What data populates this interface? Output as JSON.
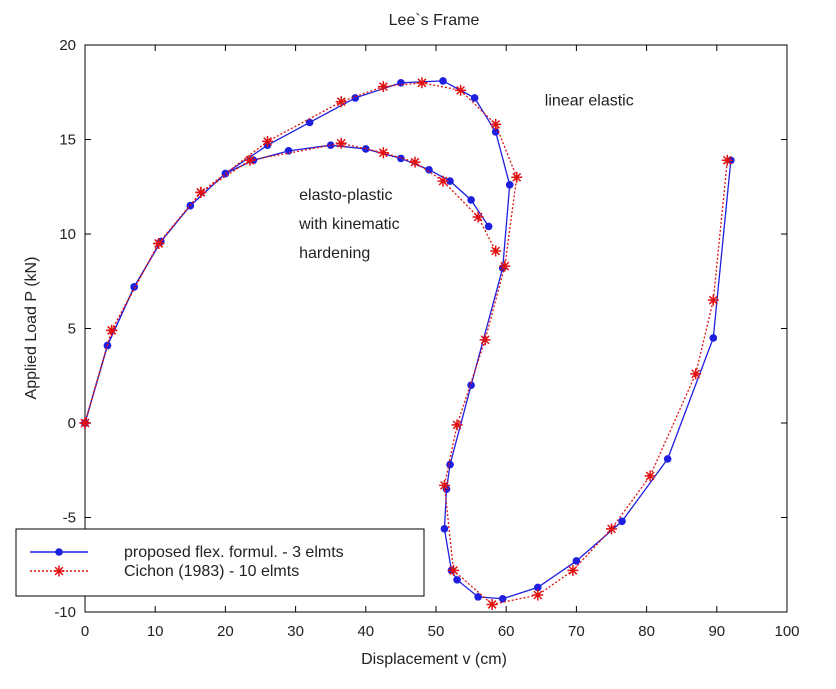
{
  "chart_data": {
    "type": "line",
    "title": "Lee`s Frame",
    "xlabel": "Displacement v (cm)",
    "ylabel": "Applied Load P (kN)",
    "xlim": [
      0,
      100
    ],
    "ylim": [
      -10,
      20
    ],
    "xticks": [
      0,
      10,
      20,
      30,
      40,
      50,
      60,
      70,
      80,
      90,
      100
    ],
    "yticks": [
      -10,
      -5,
      0,
      5,
      10,
      15,
      20
    ],
    "grid": false,
    "legend_position": "bottom-left",
    "annotations": [
      {
        "lines": [
          "linear elastic"
        ],
        "x": 65.5,
        "y": 16.8
      },
      {
        "lines": [
          "elasto-plastic",
          "with kinematic",
          "hardening"
        ],
        "x": 30.5,
        "y": 11.8
      }
    ],
    "series": [
      {
        "name": "proposed flex. formul. - 3 elmts",
        "color": "#1f1fe0",
        "marker": "dot",
        "linestyle": "solid",
        "segments": [
          [
            [
              0,
              0
            ],
            [
              3.2,
              4.1
            ],
            [
              7,
              7.2
            ],
            [
              10.8,
              9.6
            ],
            [
              15,
              11.5
            ],
            [
              20,
              13.2
            ],
            [
              26,
              14.7
            ],
            [
              32,
              15.9
            ],
            [
              38.5,
              17.2
            ],
            [
              45,
              18
            ],
            [
              51,
              18.1
            ],
            [
              55.5,
              17.2
            ],
            [
              58.5,
              15.4
            ],
            [
              60.5,
              12.6
            ],
            [
              59.5,
              8.2
            ],
            [
              55,
              2
            ],
            [
              52,
              -2.2
            ],
            [
              51.5,
              -3.5
            ],
            [
              51.2,
              -5.6
            ],
            [
              52.2,
              -7.8
            ],
            [
              53,
              -8.3
            ],
            [
              56,
              -9.2
            ],
            [
              59.5,
              -9.3
            ],
            [
              64.5,
              -8.7
            ],
            [
              70,
              -7.3
            ],
            [
              76.5,
              -5.2
            ],
            [
              83,
              -1.9
            ],
            [
              89.5,
              4.5
            ],
            [
              92,
              13.9
            ]
          ],
          [
            [
              0,
              0
            ],
            [
              3.2,
              4.1
            ],
            [
              7,
              7.2
            ],
            [
              10.8,
              9.6
            ],
            [
              15,
              11.5
            ],
            [
              20,
              13.2
            ],
            [
              24,
              13.9
            ],
            [
              29,
              14.4
            ],
            [
              35,
              14.7
            ],
            [
              40,
              14.5
            ],
            [
              45,
              14
            ],
            [
              49,
              13.4
            ],
            [
              52,
              12.8
            ],
            [
              55,
              11.8
            ],
            [
              57.5,
              10.4
            ]
          ]
        ]
      },
      {
        "name": "Cichon (1983) - 10 elmts",
        "color": "#e01010",
        "marker": "star",
        "linestyle": "dotted",
        "segments": [
          [
            [
              0,
              0
            ],
            [
              3.8,
              4.9
            ],
            [
              10.5,
              9.5
            ],
            [
              16.5,
              12.2
            ],
            [
              26,
              14.9
            ],
            [
              36.5,
              17
            ],
            [
              42.5,
              17.8
            ],
            [
              48,
              18
            ],
            [
              53.5,
              17.6
            ],
            [
              58.5,
              15.8
            ],
            [
              61.5,
              13
            ],
            [
              59.8,
              8.3
            ],
            [
              57,
              4.4
            ],
            [
              53,
              -0.1
            ],
            [
              51.2,
              -3.3
            ],
            [
              52.5,
              -7.8
            ],
            [
              58,
              -9.6
            ],
            [
              64.5,
              -9.1
            ],
            [
              69.5,
              -7.8
            ],
            [
              75,
              -5.6
            ],
            [
              80.5,
              -2.8
            ],
            [
              87,
              2.6
            ],
            [
              89.5,
              6.5
            ],
            [
              91.5,
              13.9
            ]
          ],
          [
            [
              0,
              0
            ],
            [
              3.8,
              4.9
            ],
            [
              10.5,
              9.5
            ],
            [
              16.5,
              12.2
            ],
            [
              23.5,
              13.9
            ],
            [
              36.5,
              14.8
            ],
            [
              42.5,
              14.3
            ],
            [
              47,
              13.8
            ],
            [
              51,
              12.8
            ],
            [
              56,
              10.9
            ],
            [
              58.5,
              9.1
            ]
          ]
        ]
      }
    ]
  }
}
